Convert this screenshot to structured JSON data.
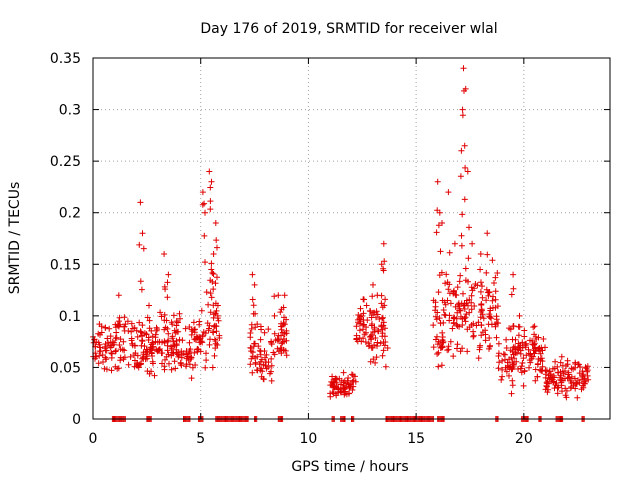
{
  "chart_data": {
    "type": "scatter",
    "title": "Day 176 of 2019, SRMTID for receiver wlal",
    "xlabel": "GPS time / hours",
    "ylabel": "SRMTID / TECUs",
    "xlim": [
      0,
      24
    ],
    "ylim": [
      0,
      0.35
    ],
    "xticks": [
      0,
      5,
      10,
      15,
      20
    ],
    "xtick_labels": [
      "0",
      "5",
      "10",
      "15",
      "20"
    ],
    "yticks": [
      0,
      0.05,
      0.1,
      0.15,
      0.2,
      0.25,
      0.3,
      0.35
    ],
    "ytick_labels": [
      "0",
      "0.05",
      "0.1",
      "0.15",
      "0.2",
      "0.25",
      "0.3",
      "0.35"
    ],
    "grid": true,
    "marker": "+",
    "series_color": "#e00000",
    "series": [
      {
        "name": "SRMTID",
        "segments": [
          {
            "x_start": 0.0,
            "x_end": 4.8,
            "base": 0.07,
            "spread": 0.025
          },
          {
            "x_start": 4.8,
            "x_end": 5.9,
            "base": 0.09,
            "spread": 0.035
          },
          {
            "x_start": 7.3,
            "x_end": 8.3,
            "base": 0.06,
            "spread": 0.025
          },
          {
            "x_start": 8.3,
            "x_end": 9.0,
            "base": 0.08,
            "spread": 0.03
          },
          {
            "x_start": 11.0,
            "x_end": 12.2,
            "base": 0.03,
            "spread": 0.012
          },
          {
            "x_start": 12.2,
            "x_end": 13.7,
            "base": 0.085,
            "spread": 0.03
          },
          {
            "x_start": 15.7,
            "x_end": 16.3,
            "base": 0.08,
            "spread": 0.03
          },
          {
            "x_start": 16.3,
            "x_end": 18.8,
            "base": 0.1,
            "spread": 0.04
          },
          {
            "x_start": 18.8,
            "x_end": 21.0,
            "base": 0.06,
            "spread": 0.025
          },
          {
            "x_start": 21.0,
            "x_end": 23.0,
            "base": 0.04,
            "spread": 0.015
          }
        ],
        "peaks": [
          [
            0.4,
            0.09
          ],
          [
            1.2,
            0.12
          ],
          [
            2.2,
            0.21
          ],
          [
            2.3,
            0.18
          ],
          [
            2.6,
            0.11
          ],
          [
            3.3,
            0.16
          ],
          [
            3.5,
            0.14
          ],
          [
            5.1,
            0.22
          ],
          [
            5.2,
            0.2
          ],
          [
            5.4,
            0.24
          ],
          [
            5.5,
            0.23
          ],
          [
            5.6,
            0.16
          ],
          [
            5.7,
            0.19
          ],
          [
            5.8,
            0.11
          ],
          [
            7.4,
            0.14
          ],
          [
            7.5,
            0.13
          ],
          [
            8.6,
            0.12
          ],
          [
            8.9,
            0.12
          ],
          [
            12.7,
            0.11
          ],
          [
            13.0,
            0.13
          ],
          [
            13.2,
            0.12
          ],
          [
            13.4,
            0.15
          ],
          [
            13.5,
            0.17
          ],
          [
            16.0,
            0.23
          ],
          [
            16.1,
            0.2
          ],
          [
            16.2,
            0.19
          ],
          [
            16.5,
            0.22
          ],
          [
            16.8,
            0.17
          ],
          [
            17.1,
            0.26
          ],
          [
            17.2,
            0.34
          ],
          [
            17.3,
            0.32
          ],
          [
            17.4,
            0.24
          ],
          [
            17.6,
            0.17
          ],
          [
            18.0,
            0.16
          ],
          [
            18.3,
            0.18
          ],
          [
            19.5,
            0.14
          ],
          [
            19.8,
            0.1
          ],
          [
            20.5,
            0.09
          ]
        ],
        "zero_ranges": [
          [
            0.9,
            1.5
          ],
          [
            2.5,
            2.7
          ],
          [
            4.2,
            4.5
          ],
          [
            4.9,
            5.1
          ],
          [
            5.7,
            7.2
          ],
          [
            7.5,
            7.6
          ],
          [
            8.6,
            8.8
          ],
          [
            11.1,
            11.2
          ],
          [
            11.5,
            11.7
          ],
          [
            12.0,
            12.1
          ],
          [
            13.6,
            15.8
          ],
          [
            16.0,
            16.3
          ],
          [
            18.7,
            18.8
          ],
          [
            19.9,
            20.2
          ],
          [
            20.7,
            20.8
          ],
          [
            21.5,
            21.8
          ],
          [
            22.7,
            22.8
          ]
        ]
      }
    ]
  }
}
